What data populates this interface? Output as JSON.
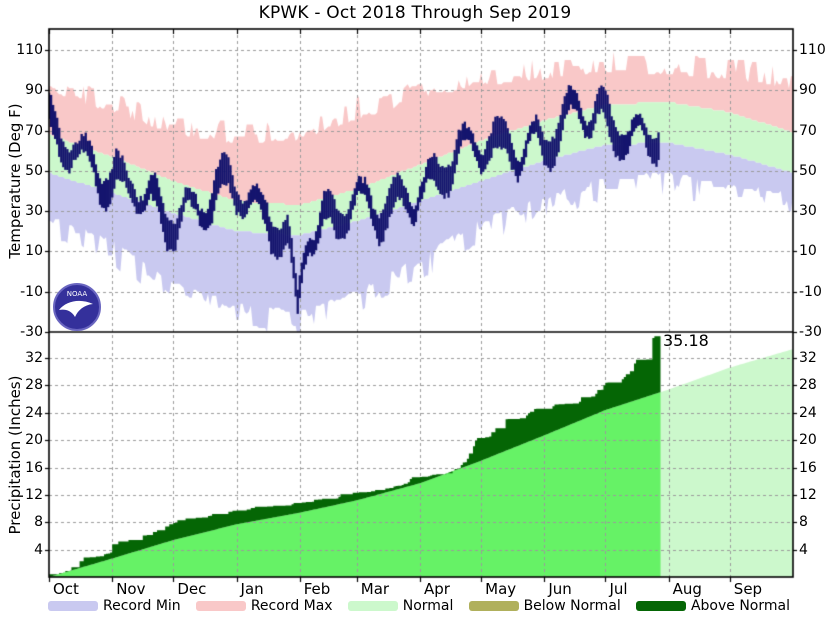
{
  "title": "KPWK - Oct 2018 Through Sep 2019",
  "annotation": {
    "total_precip_label": "35.18"
  },
  "noaa_logo": {
    "name": "NOAA",
    "text": "NOAA"
  },
  "colors": {
    "record_min": "#c9c9f0",
    "record_max": "#f9c8c8",
    "normal_band": "#ccf8cc",
    "normal_pale": "#ccf8cc",
    "normal_bright": "#66f266",
    "below_normal": "#b0b05c",
    "above_normal": "#056605",
    "daily_temp": "#15156e",
    "grid": "#9b9b9b",
    "axis": "#000000"
  },
  "legend": {
    "items": [
      {
        "label": "Record Min",
        "color": "#c9c9f0"
      },
      {
        "label": "Record Max",
        "color": "#f9c8c8"
      },
      {
        "label": "Normal",
        "color": "#ccf8cc"
      },
      {
        "label": "Below Normal",
        "color": "#b0b05c"
      },
      {
        "label": "Above Normal",
        "color": "#056605"
      }
    ]
  },
  "chart_data": {
    "months": [
      "Oct",
      "Nov",
      "Dec",
      "Jan",
      "Feb",
      "Mar",
      "Apr",
      "May",
      "Jun",
      "Jul",
      "Aug",
      "Sep"
    ],
    "month_start_days": [
      0,
      31,
      61,
      92,
      123,
      151,
      182,
      212,
      243,
      273,
      304,
      334
    ],
    "year_days": 365,
    "temperature": {
      "type": "area+hilo",
      "ylabel": "Temperature (Deg F)",
      "ylim": [
        -30,
        120
      ],
      "yticks": [
        -30,
        -10,
        10,
        30,
        50,
        70,
        90,
        110
      ],
      "anchor_days": [
        0,
        31,
        61,
        92,
        123,
        151,
        182,
        212,
        243,
        273,
        304,
        334,
        365
      ],
      "record_high": [
        92,
        81,
        71,
        66,
        68,
        78,
        88,
        95,
        98,
        102,
        100,
        98,
        93
      ],
      "normal_high": [
        68,
        57,
        45,
        35,
        33,
        41,
        53,
        65,
        75,
        83,
        84,
        79,
        69
      ],
      "normal_low": [
        49,
        39,
        29,
        20,
        18,
        25,
        35,
        45,
        55,
        63,
        64,
        58,
        49
      ],
      "record_low": [
        25,
        13,
        -8,
        -18,
        -22,
        -12,
        5,
        24,
        35,
        45,
        47,
        41,
        37
      ],
      "actual_anchor_days": [
        0,
        31,
        61,
        92,
        123,
        151,
        182,
        212,
        243,
        273,
        299
      ],
      "actual_high": [
        84,
        50,
        42,
        44,
        28,
        36,
        55,
        63,
        76,
        85,
        86
      ],
      "actual_low": [
        63,
        36,
        29,
        30,
        13,
        23,
        38,
        46,
        58,
        67,
        69
      ],
      "data_end_day": 299,
      "cold_snap": {
        "day": 122,
        "low": -21,
        "high": -9
      }
    },
    "precipitation": {
      "type": "cumulative-area",
      "ylabel": "Precipitation (Inches)",
      "ylim": [
        0,
        35.7
      ],
      "yticks": [
        4,
        8,
        12,
        16,
        20,
        24,
        28,
        32
      ],
      "anchor_days": [
        0,
        31,
        61,
        92,
        123,
        151,
        182,
        212,
        243,
        273,
        304,
        334,
        365
      ],
      "normal_cumulative": [
        0,
        2.7,
        5.4,
        7.7,
        9.4,
        11.2,
        13.7,
        17.0,
        20.7,
        24.4,
        27.4,
        30.6,
        33.3
      ],
      "actual_anchor_days": [
        0,
        31,
        61,
        92,
        123,
        151,
        182,
        212,
        243,
        273,
        299
      ],
      "actual_cumulative": [
        0.4,
        4.8,
        7.9,
        9.7,
        10.8,
        12.3,
        14.6,
        20.3,
        24.6,
        28.4,
        35.18
      ],
      "late_bias_segments": [
        6,
        9
      ],
      "final_total": 35.18,
      "data_end_day": 299
    }
  }
}
